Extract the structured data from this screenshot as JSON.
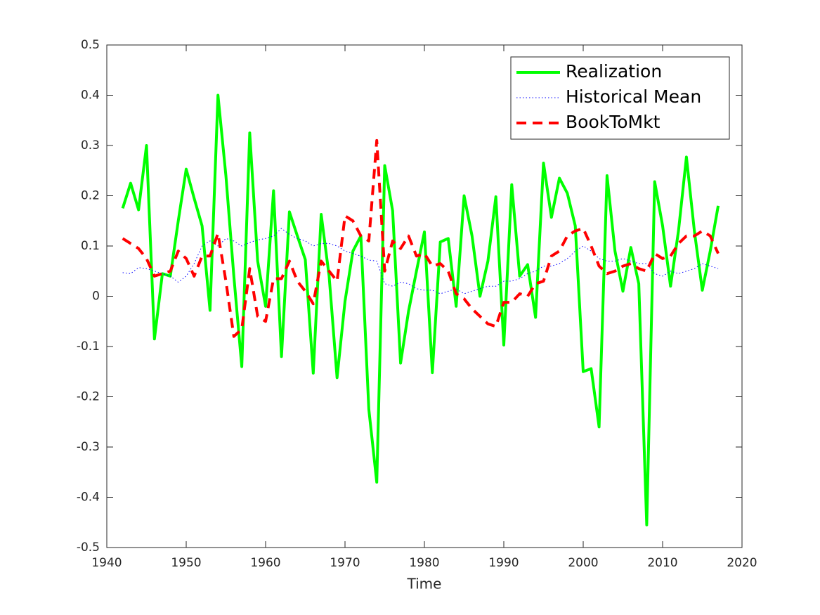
{
  "chart_data": {
    "type": "line",
    "xlabel": "Time",
    "x": [
      1942,
      1943,
      1944,
      1945,
      1946,
      1947,
      1948,
      1949,
      1950,
      1951,
      1952,
      1953,
      1954,
      1955,
      1956,
      1957,
      1958,
      1959,
      1960,
      1961,
      1962,
      1963,
      1964,
      1965,
      1966,
      1967,
      1968,
      1969,
      1970,
      1971,
      1972,
      1973,
      1974,
      1975,
      1976,
      1977,
      1978,
      1979,
      1980,
      1981,
      1982,
      1983,
      1984,
      1985,
      1986,
      1987,
      1988,
      1989,
      1990,
      1991,
      1992,
      1993,
      1994,
      1995,
      1996,
      1997,
      1998,
      1999,
      2000,
      2001,
      2002,
      2003,
      2004,
      2005,
      2006,
      2007,
      2008,
      2009,
      2010,
      2011,
      2012,
      2013,
      2014,
      2015,
      2016,
      2017
    ],
    "series": [
      {
        "name": "Realization",
        "color": "#00ff00",
        "style": "solid",
        "values": [
          0.175,
          0.225,
          0.172,
          0.3,
          -0.085,
          0.045,
          0.04,
          0.15,
          0.253,
          0.195,
          0.14,
          -0.028,
          0.4,
          0.24,
          0.04,
          -0.14,
          0.325,
          0.07,
          -0.02,
          0.21,
          -0.12,
          0.168,
          0.12,
          0.073,
          -0.153,
          0.163,
          0.04,
          -0.162,
          -0.01,
          0.09,
          0.12,
          -0.225,
          -0.37,
          0.26,
          0.17,
          -0.133,
          -0.03,
          0.05,
          0.128,
          -0.152,
          0.108,
          0.115,
          -0.02,
          0.2,
          0.12,
          0.0,
          0.07,
          0.198,
          -0.097,
          0.222,
          0.04,
          0.063,
          -0.042,
          0.265,
          0.157,
          0.235,
          0.205,
          0.14,
          -0.15,
          -0.144,
          -0.26,
          0.24,
          0.09,
          0.01,
          0.097,
          0.025,
          -0.455,
          0.228,
          0.14,
          0.02,
          0.13,
          0.277,
          0.13,
          0.012,
          0.09,
          0.18
        ]
      },
      {
        "name": "Historical Mean",
        "color": "#0000ff",
        "style": "dotted",
        "values": [
          0.047,
          0.045,
          0.057,
          0.055,
          0.05,
          0.045,
          0.04,
          0.028,
          0.04,
          0.065,
          0.1,
          0.11,
          0.1,
          0.115,
          0.11,
          0.1,
          0.107,
          0.112,
          0.115,
          0.12,
          0.135,
          0.123,
          0.115,
          0.11,
          0.1,
          0.105,
          0.105,
          0.1,
          0.09,
          0.085,
          0.08,
          0.072,
          0.07,
          0.025,
          0.02,
          0.028,
          0.025,
          0.015,
          0.012,
          0.012,
          0.005,
          0.01,
          0.015,
          0.005,
          0.01,
          0.015,
          0.02,
          0.02,
          0.03,
          0.03,
          0.035,
          0.045,
          0.05,
          0.06,
          0.06,
          0.065,
          0.075,
          0.09,
          0.1,
          0.09,
          0.075,
          0.07,
          0.07,
          0.075,
          0.07,
          0.065,
          0.065,
          0.045,
          0.04,
          0.05,
          0.045,
          0.05,
          0.055,
          0.065,
          0.06,
          0.055
        ]
      },
      {
        "name": "BookToMkt",
        "color": "#ff0000",
        "style": "dashed",
        "values": [
          0.115,
          0.105,
          0.095,
          0.075,
          0.04,
          0.045,
          0.05,
          0.09,
          0.075,
          0.04,
          0.08,
          0.08,
          0.125,
          0.03,
          -0.08,
          -0.065,
          0.055,
          -0.04,
          -0.05,
          0.035,
          0.035,
          0.07,
          0.03,
          0.01,
          -0.015,
          0.07,
          0.05,
          0.03,
          0.16,
          0.15,
          0.12,
          0.11,
          0.31,
          0.05,
          0.11,
          0.095,
          0.12,
          0.08,
          0.085,
          0.06,
          0.065,
          0.05,
          0.005,
          -0.005,
          -0.025,
          -0.04,
          -0.055,
          -0.06,
          -0.012,
          -0.012,
          0.005,
          0.0,
          0.025,
          0.03,
          0.08,
          0.09,
          0.12,
          0.13,
          0.135,
          0.1,
          0.06,
          0.045,
          0.05,
          0.06,
          0.065,
          0.055,
          0.05,
          0.085,
          0.075,
          0.08,
          0.105,
          0.12,
          0.12,
          0.13,
          0.12,
          0.085
        ]
      }
    ],
    "xlim": [
      1940,
      2020
    ],
    "xticks": [
      1940,
      1950,
      1960,
      1970,
      1980,
      1990,
      2000,
      2010,
      2020
    ],
    "ylim": [
      -0.5,
      0.5
    ],
    "yticks": [
      -0.5,
      -0.4,
      -0.3,
      -0.2,
      -0.1,
      0,
      0.1,
      0.2,
      0.3,
      0.4,
      0.5
    ],
    "grid": false,
    "legend": "northeast"
  }
}
